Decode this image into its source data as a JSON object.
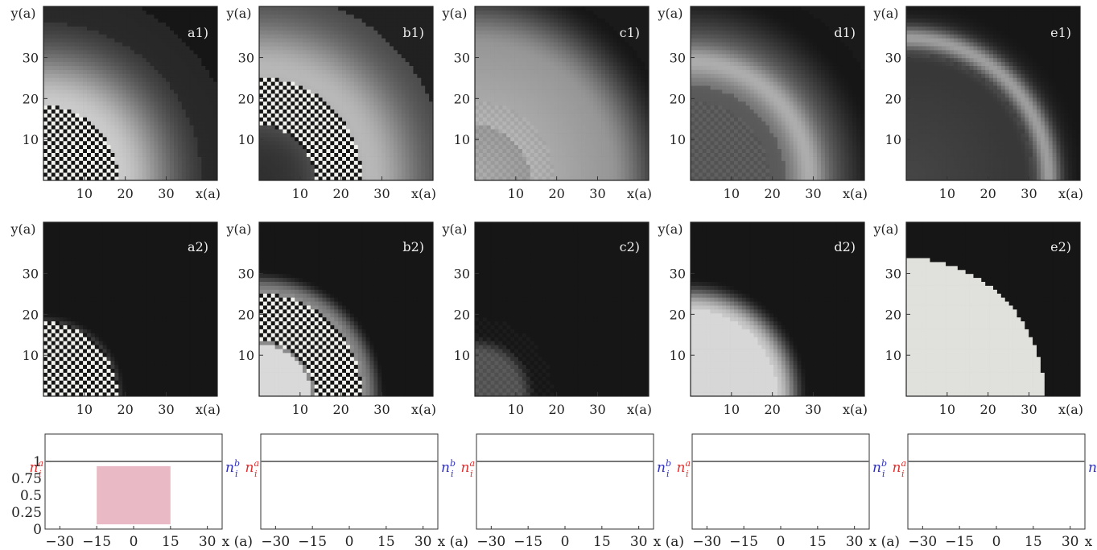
{
  "figure": {
    "axis": {
      "y_label": "y(a)",
      "x_label": "x(a)",
      "y_ticks": [
        "10",
        "20",
        "30"
      ],
      "x_ticks": [
        "10",
        "20",
        "30"
      ],
      "profile_x_ticks": [
        "−30",
        "−15",
        "0",
        "15",
        "30"
      ],
      "profile_x_label": "x (a)",
      "profile_y_ticks": [
        "0",
        "0.25",
        "0.5",
        "0.75",
        "1"
      ],
      "left_label": "n_i^a",
      "right_label": "n_i^b"
    },
    "colors": {
      "na": "#e04545",
      "nb": "#4a4aa8",
      "sum": "#60dd60",
      "ref": "#777777"
    },
    "columns": [
      {
        "key": "a",
        "panel1": {
          "label": "a1)",
          "checker_r": 19,
          "density_mode": "a1"
        },
        "panel2": {
          "label": "a2)",
          "checker_r": 19,
          "density_mode": "a2"
        },
        "profile": {
          "mode": "a"
        }
      },
      {
        "key": "b",
        "panel1": {
          "label": "b1)",
          "checker_r": 26,
          "checker_inner": 14,
          "density_mode": "b1"
        },
        "panel2": {
          "label": "b2)",
          "checker_r": 26,
          "checker_inner": 14,
          "density_mode": "b2"
        },
        "profile": {
          "mode": "b"
        }
      },
      {
        "key": "c",
        "panel1": {
          "label": "c1)",
          "density_mode": "c1"
        },
        "panel2": {
          "label": "c2)",
          "density_mode": "c2"
        },
        "profile": {
          "mode": "c"
        }
      },
      {
        "key": "d",
        "panel1": {
          "label": "d1)",
          "density_mode": "d1"
        },
        "panel2": {
          "label": "d2)",
          "density_mode": "d2"
        },
        "profile": {
          "mode": "d"
        }
      },
      {
        "key": "e",
        "panel1": {
          "label": "e1)",
          "density_mode": "e1"
        },
        "panel2": {
          "label": "e2)",
          "density_mode": "e2"
        },
        "profile": {
          "mode": "e"
        }
      }
    ]
  }
}
